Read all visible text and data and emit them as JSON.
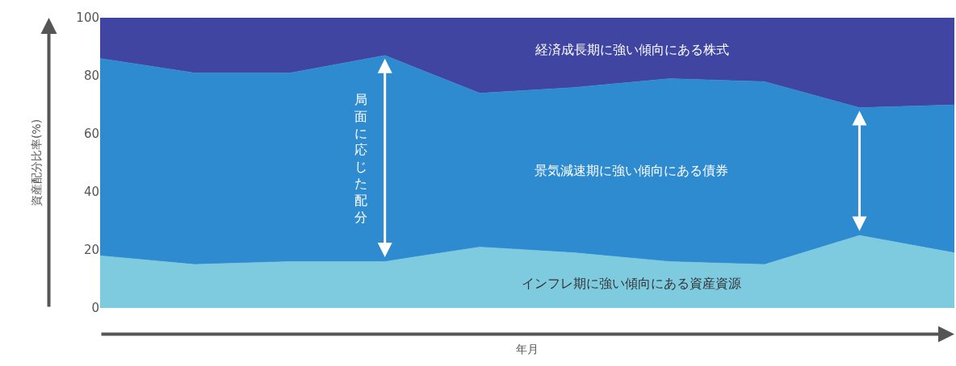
{
  "chart_data": {
    "type": "area",
    "stacked": true,
    "xlabel": "年月",
    "ylabel": "資産配分比率(%)",
    "categories": [
      null,
      null,
      null,
      null,
      null,
      null,
      null,
      null,
      null,
      null
    ],
    "series": [
      {
        "name": "インフレ期に強い傾向にある資産資源",
        "color": "#7ecbe0",
        "values": [
          18,
          15,
          16,
          16,
          21,
          19,
          16,
          15,
          25,
          19
        ]
      },
      {
        "name": "景気減速期に強い傾向にある債券",
        "color": "#2f8bd0",
        "values": [
          68,
          66,
          65,
          71,
          53,
          57,
          63,
          63,
          44,
          51
        ]
      },
      {
        "name": "経済成長期に強い傾向にある株式",
        "color": "#3f45a0",
        "values": [
          14,
          19,
          19,
          13,
          26,
          24,
          21,
          22,
          31,
          30
        ]
      }
    ],
    "ylim": [
      0,
      100
    ],
    "yticks": [
      0,
      20,
      40,
      60,
      80,
      100
    ],
    "annotations": [
      "局面に応じた配分"
    ],
    "tick_labels": "y"
  }
}
